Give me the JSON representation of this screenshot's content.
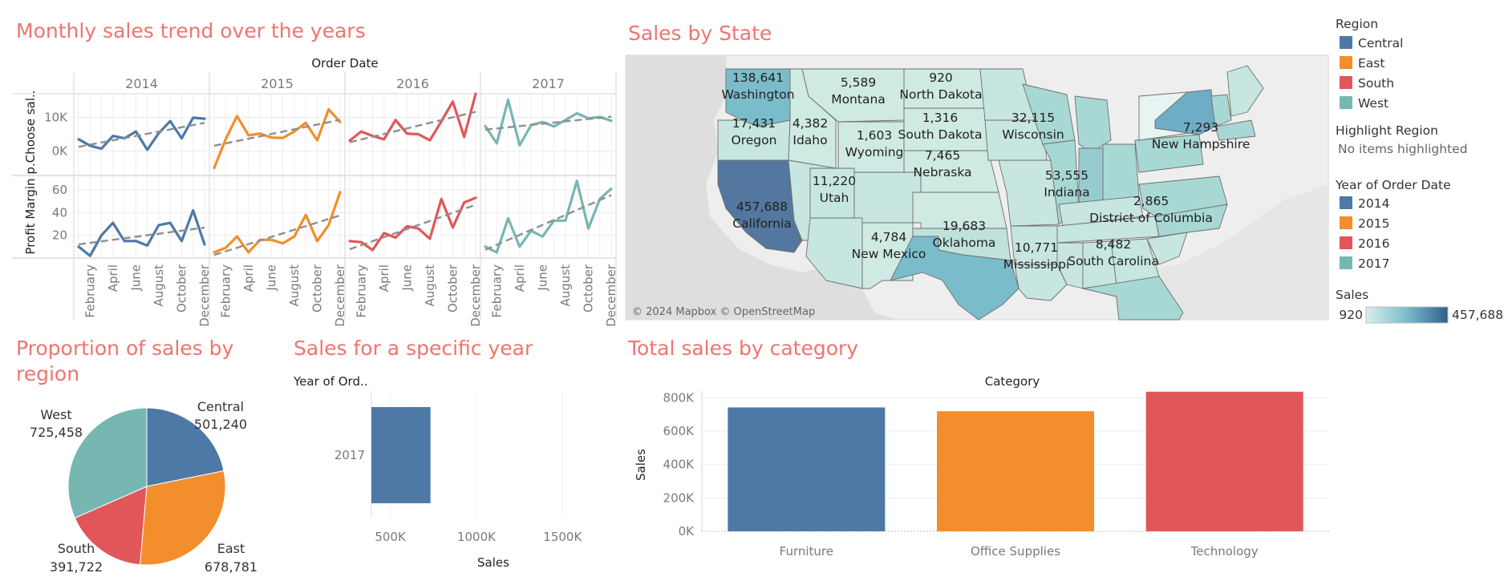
{
  "line_panel": {
    "title": "Monthly sales trend over the years",
    "column_header": "Order Date",
    "row_header_top": "p.Choose sal..",
    "row_header_bottom": "Profit Margin"
  },
  "map_panel": {
    "title": "Sales by State",
    "credit": "© 2024 Mapbox © OpenStreetMap"
  },
  "pie_panel": {
    "title_line1": "Proportion of sales by",
    "title_line2": "region"
  },
  "hbar_panel": {
    "title": "Sales for a specific year",
    "row_header": "Year of Ord..",
    "xlabel": "Sales"
  },
  "bar_panel": {
    "title": "Total sales by category",
    "column_header": "Category",
    "ylabel": "Sales"
  },
  "legend": {
    "region_title": "Region",
    "regions": [
      {
        "label": "Central",
        "color": "#4e79a7"
      },
      {
        "label": "East",
        "color": "#f28e2b"
      },
      {
        "label": "South",
        "color": "#e15759"
      },
      {
        "label": "West",
        "color": "#76b7b2"
      }
    ],
    "highlight_title": "Highlight Region",
    "highlight_value": "No items highlighted",
    "year_title": "Year of Order Date",
    "years": [
      {
        "label": "2014",
        "color": "#4e79a7"
      },
      {
        "label": "2015",
        "color": "#f28e2b"
      },
      {
        "label": "2016",
        "color": "#e15759"
      },
      {
        "label": "2017",
        "color": "#76b7b2"
      }
    ],
    "sales_title": "Sales",
    "sales_min": "920",
    "sales_max": "457,688"
  },
  "chart_data": [
    {
      "type": "line",
      "title": "Monthly sales trend over the years",
      "column_header": "Order Date",
      "facets": [
        "2014",
        "2015",
        "2016",
        "2017"
      ],
      "x_tick_labels": [
        "February",
        "April",
        "June",
        "August",
        "October",
        "December"
      ],
      "months": [
        1,
        2,
        3,
        4,
        5,
        6,
        7,
        8,
        9,
        10,
        11,
        12
      ],
      "trend_lines": true,
      "rows": [
        {
          "ylabel": "p.Choose sal..",
          "y_ticks": [
            "0K",
            "10K"
          ],
          "y_tick_values": [
            0,
            10000
          ],
          "ylim": [
            -7000,
            17000
          ],
          "series": [
            {
              "name": "2014",
              "color": "#4e79a7",
              "values": [
                3500,
                1600,
                700,
                4500,
                3800,
                5800,
                400,
                5300,
                8900,
                3800,
                9900,
                9600
              ]
            },
            {
              "name": "2015",
              "color": "#f28e2b",
              "values": [
                -5000,
                3500,
                10400,
                4700,
                5200,
                4000,
                3900,
                5800,
                8400,
                3200,
                12400,
                8600
              ]
            },
            {
              "name": "2016",
              "color": "#e15759",
              "values": [
                3100,
                5800,
                4500,
                3500,
                9200,
                5200,
                5000,
                3200,
                8800,
                14700,
                4200,
                18500
              ]
            },
            {
              "name": "2017",
              "color": "#76b7b2",
              "values": [
                7400,
                2300,
                15200,
                1700,
                7700,
                8600,
                7300,
                9200,
                11200,
                9700,
                10100,
                9000
              ]
            }
          ]
        },
        {
          "ylabel": "Profit Margin",
          "y_ticks": [
            "20",
            "40",
            "60"
          ],
          "y_tick_values": [
            20,
            40,
            60
          ],
          "ylim": [
            0,
            72
          ],
          "series": [
            {
              "name": "2014",
              "color": "#4e79a7",
              "values": [
                10,
                2,
                20,
                31,
                15,
                15,
                11,
                29,
                31,
                15,
                42,
                12
              ]
            },
            {
              "name": "2015",
              "color": "#f28e2b",
              "values": [
                5,
                9,
                19,
                5,
                16,
                16,
                13,
                19,
                38,
                15,
                29,
                58
              ]
            },
            {
              "name": "2016",
              "color": "#e15759",
              "values": [
                15,
                14,
                7,
                22,
                18,
                28,
                26,
                17,
                52,
                27,
                49,
                53
              ]
            },
            {
              "name": "2017",
              "color": "#76b7b2",
              "values": [
                10,
                5,
                35,
                10,
                24,
                19,
                33,
                33,
                68,
                26,
                52,
                61
              ]
            }
          ]
        }
      ]
    },
    {
      "type": "map",
      "title": "Sales by State",
      "color_legend": {
        "title": "Sales",
        "min": 920,
        "max": 457688
      },
      "labeled_states": [
        {
          "name": "Washington",
          "value": "138,641"
        },
        {
          "name": "Montana",
          "value": "5,589"
        },
        {
          "name": "North Dakota",
          "value": "920"
        },
        {
          "name": "Oregon",
          "value": "17,431"
        },
        {
          "name": "Idaho",
          "value": "4,382"
        },
        {
          "name": "Wyoming",
          "value": "1,603"
        },
        {
          "name": "South Dakota",
          "value": "1,316"
        },
        {
          "name": "Wisconsin",
          "value": "32,115"
        },
        {
          "name": "New Hampshire",
          "value": "7,293"
        },
        {
          "name": "Nebraska",
          "value": "7,465"
        },
        {
          "name": "Utah",
          "value": "11,220"
        },
        {
          "name": "Indiana",
          "value": "53,555"
        },
        {
          "name": "District of Columbia",
          "value": "2,865"
        },
        {
          "name": "California",
          "value": "457,688"
        },
        {
          "name": "New Mexico",
          "value": "4,784"
        },
        {
          "name": "Oklahoma",
          "value": "19,683"
        },
        {
          "name": "Mississippi",
          "value": "10,771"
        },
        {
          "name": "South Carolina",
          "value": "8,482"
        }
      ]
    },
    {
      "type": "pie",
      "title": "Proportion of sales by region",
      "slices": [
        {
          "label": "Central",
          "value": 501240,
          "display": "501,240",
          "color": "#4e79a7"
        },
        {
          "label": "East",
          "value": 678781,
          "display": "678,781",
          "color": "#f28e2b"
        },
        {
          "label": "South",
          "value": 391722,
          "display": "391,722",
          "color": "#e15759"
        },
        {
          "label": "West",
          "value": 725458,
          "display": "725,458",
          "color": "#76b7b2"
        }
      ]
    },
    {
      "type": "bar",
      "orientation": "horizontal",
      "title": "Sales for a specific year",
      "row_header": "Year of Ord..",
      "categories": [
        "2017"
      ],
      "values": [
        733215
      ],
      "xlabel": "Sales",
      "x_ticks": [
        "500K",
        "1000K",
        "1500K"
      ],
      "x_tick_values": [
        500000,
        1000000,
        1500000
      ],
      "xlim": [
        390000,
        1820000
      ],
      "color": "#4e79a7"
    },
    {
      "type": "bar",
      "title": "Total sales by category",
      "column_header": "Category",
      "categories": [
        "Furniture",
        "Office Supplies",
        "Technology"
      ],
      "values": [
        742000,
        719047,
        836154
      ],
      "colors": [
        "#4e79a7",
        "#f28e2b",
        "#e15759"
      ],
      "ylabel": "Sales",
      "y_ticks": [
        "0K",
        "200K",
        "400K",
        "600K",
        "800K"
      ],
      "y_tick_values": [
        0,
        200000,
        400000,
        600000,
        800000
      ],
      "ylim": [
        0,
        840000
      ]
    }
  ]
}
